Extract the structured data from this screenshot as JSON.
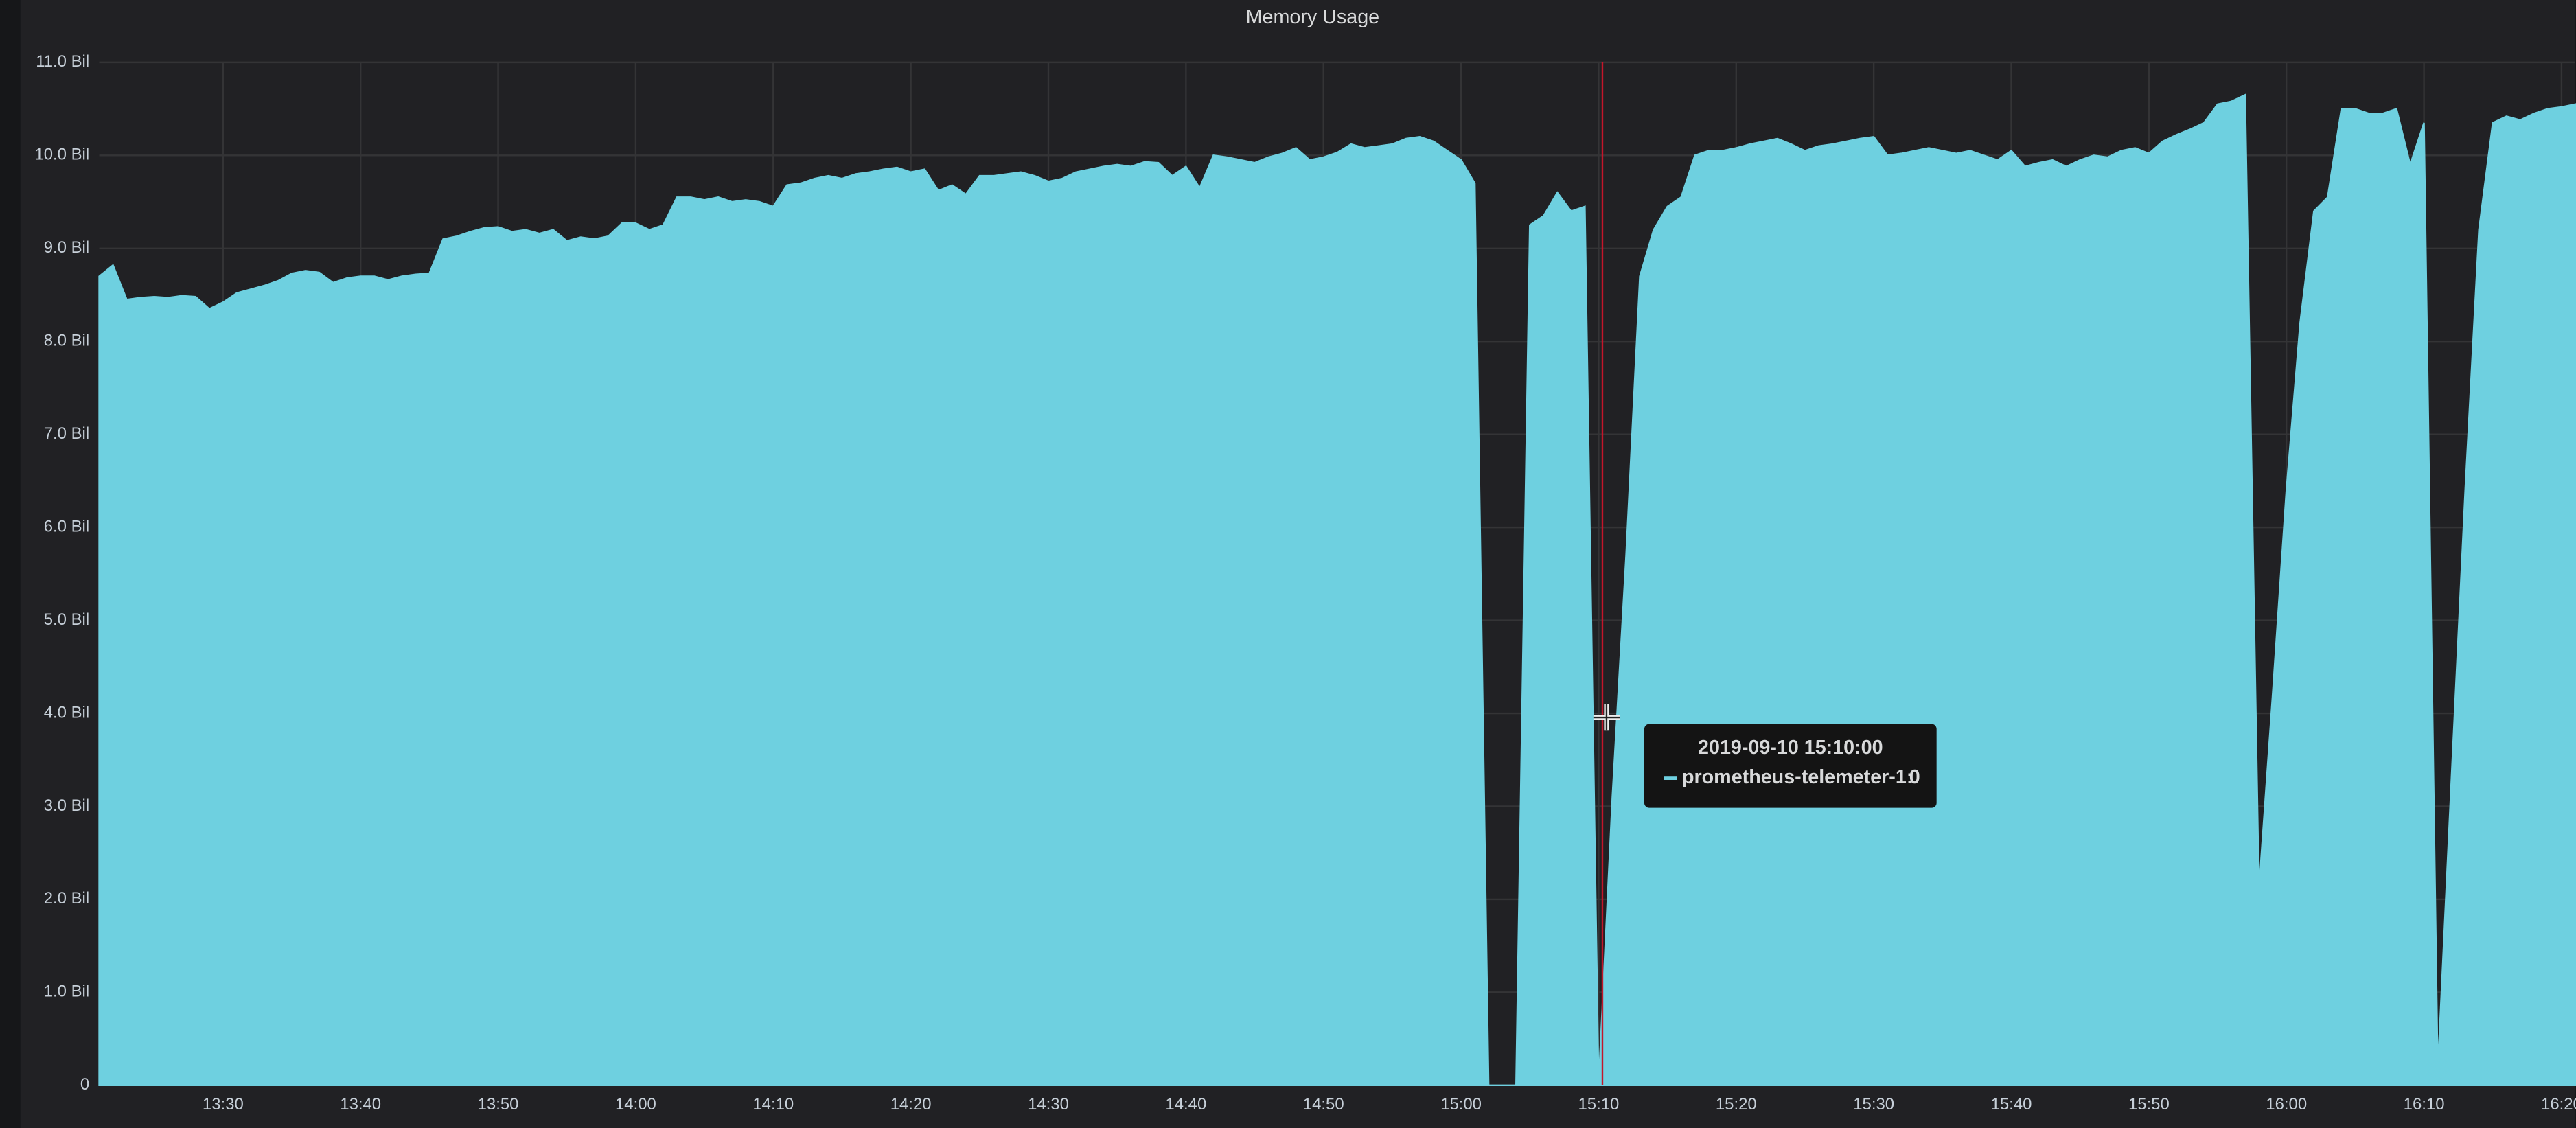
{
  "chart_data": {
    "type": "area",
    "title": "Memory Usage",
    "x": [
      "13:21",
      "13:22",
      "13:23",
      "13:24",
      "13:25",
      "13:26",
      "13:27",
      "13:28",
      "13:29",
      "13:30",
      "13:31",
      "13:32",
      "13:33",
      "13:34",
      "13:35",
      "13:36",
      "13:37",
      "13:38",
      "13:39",
      "13:40",
      "13:41",
      "13:42",
      "13:43",
      "13:44",
      "13:45",
      "13:46",
      "13:47",
      "13:48",
      "13:49",
      "13:50",
      "13:51",
      "13:52",
      "13:53",
      "13:54",
      "13:55",
      "13:56",
      "13:57",
      "13:58",
      "13:59",
      "14:00",
      "14:01",
      "14:02",
      "14:03",
      "14:04",
      "14:05",
      "14:06",
      "14:07",
      "14:08",
      "14:09",
      "14:10",
      "14:11",
      "14:12",
      "14:13",
      "14:14",
      "14:15",
      "14:16",
      "14:17",
      "14:18",
      "14:19",
      "14:20",
      "14:21",
      "14:22",
      "14:23",
      "14:24",
      "14:25",
      "14:26",
      "14:27",
      "14:28",
      "14:29",
      "14:30",
      "14:31",
      "14:32",
      "14:33",
      "14:34",
      "14:35",
      "14:36",
      "14:37",
      "14:38",
      "14:39",
      "14:40",
      "14:41",
      "14:42",
      "14:43",
      "14:44",
      "14:45",
      "14:46",
      "14:47",
      "14:48",
      "14:49",
      "14:50",
      "14:51",
      "14:52",
      "14:53",
      "14:54",
      "14:55",
      "14:56",
      "14:57",
      "14:58",
      "14:59",
      "15:00",
      "15:01",
      "15:02",
      "15:03",
      "15:04",
      "15:05",
      "15:06",
      "15:07",
      "15:08",
      "15:09",
      "15:10",
      "15:11",
      "15:12",
      "15:13",
      "15:14",
      "15:15",
      "15:16",
      "15:17",
      "15:18",
      "15:19",
      "15:20",
      "15:21",
      "15:22",
      "15:23",
      "15:24",
      "15:25",
      "15:26",
      "15:27",
      "15:28",
      "15:29",
      "15:30",
      "15:31",
      "15:32",
      "15:33",
      "15:34",
      "15:35",
      "15:36",
      "15:37",
      "15:38",
      "15:39",
      "15:40",
      "15:41",
      "15:42",
      "15:43",
      "15:44",
      "15:45",
      "15:46",
      "15:47",
      "15:48",
      "15:49",
      "15:50",
      "15:51",
      "15:52",
      "15:53",
      "15:54",
      "15:55",
      "15:56",
      "15:57",
      "15:58",
      "15:59",
      "16:00",
      "16:01",
      "16:02",
      "16:03",
      "16:04",
      "16:05",
      "16:06",
      "16:07",
      "16:08",
      "16:09",
      "16:10",
      "16:11",
      "16:12",
      "16:13",
      "16:14",
      "16:15",
      "16:16",
      "16:17",
      "16:18",
      "16:19",
      "16:20",
      "16:21"
    ],
    "series": [
      {
        "name": "prometheus-telemeter-1",
        "color": "#6ed0e0",
        "values": [
          8.7,
          8.82,
          8.45,
          8.47,
          8.48,
          8.47,
          8.49,
          8.48,
          8.35,
          8.42,
          8.52,
          8.56,
          8.6,
          8.65,
          8.73,
          8.76,
          8.74,
          8.63,
          8.68,
          8.7,
          8.7,
          8.66,
          8.7,
          8.72,
          8.73,
          9.1,
          9.13,
          9.18,
          9.22,
          9.23,
          9.18,
          9.2,
          9.16,
          9.2,
          9.08,
          9.12,
          9.1,
          9.13,
          9.27,
          9.27,
          9.2,
          9.25,
          9.55,
          9.55,
          9.52,
          9.55,
          9.5,
          9.52,
          9.5,
          9.45,
          9.68,
          9.7,
          9.75,
          9.78,
          9.75,
          9.8,
          9.82,
          9.85,
          9.87,
          9.82,
          9.85,
          9.62,
          9.68,
          9.58,
          9.78,
          9.78,
          9.8,
          9.82,
          9.78,
          9.72,
          9.75,
          9.82,
          9.85,
          9.88,
          9.9,
          9.88,
          9.93,
          9.92,
          9.78,
          9.88,
          9.65,
          10.0,
          9.98,
          9.95,
          9.92,
          9.98,
          10.02,
          10.08,
          9.95,
          9.98,
          10.03,
          10.12,
          10.08,
          10.1,
          10.12,
          10.18,
          10.2,
          10.15,
          10.05,
          9.95,
          9.7,
          0,
          0,
          0,
          9.25,
          9.35,
          9.6,
          9.4,
          9.45,
          0,
          3.1,
          5.7,
          8.7,
          9.2,
          9.45,
          9.55,
          10.0,
          10.05,
          10.05,
          10.08,
          10.12,
          10.15,
          10.18,
          10.12,
          10.05,
          10.1,
          10.12,
          10.15,
          10.18,
          10.2,
          10.0,
          10.02,
          10.05,
          10.08,
          10.05,
          10.02,
          10.05,
          10.0,
          9.95,
          10.05,
          9.88,
          9.92,
          9.95,
          9.88,
          9.95,
          10.0,
          9.98,
          10.05,
          10.08,
          10.02,
          10.15,
          10.22,
          10.28,
          10.35,
          10.55,
          10.58,
          10.65,
          2.1,
          4.2,
          6.4,
          8.2,
          9.4,
          9.55,
          10.5,
          10.5,
          10.45,
          10.45,
          10.5,
          9.9,
          10.35,
          0.15,
          3.3,
          6.4,
          9.2,
          10.35,
          10.42,
          10.38,
          10.45,
          10.5,
          10.52,
          10.55
        ]
      }
    ],
    "xlim": [
      "13:21",
      "16:21"
    ],
    "xticks": [
      "13:30",
      "13:40",
      "13:50",
      "14:00",
      "14:10",
      "14:20",
      "14:30",
      "14:40",
      "14:50",
      "15:00",
      "15:10",
      "15:20",
      "15:30",
      "15:40",
      "15:50",
      "16:00",
      "16:10",
      "16:20"
    ],
    "ylim": [
      0,
      11
    ],
    "yticks": [
      0,
      {
        "value": 1,
        "label": "1.0 Bil"
      },
      {
        "value": 2,
        "label": "2.0 Bil"
      },
      {
        "value": 3,
        "label": "3.0 Bil"
      },
      {
        "value": 4,
        "label": "4.0 Bil"
      },
      {
        "value": 5,
        "label": "5.0 Bil"
      },
      {
        "value": 6,
        "label": "6.0 Bil"
      },
      {
        "value": 7,
        "label": "7.0 Bil"
      },
      {
        "value": 8,
        "label": "8.0 Bil"
      },
      {
        "value": 9,
        "label": "9.0 Bil"
      },
      {
        "value": 10,
        "label": "10.0 Bil"
      },
      {
        "value": 11,
        "label": "11.0 Bil"
      }
    ],
    "grid": true,
    "tooltip": {
      "title": "2019-09-10 15:10:00",
      "series_label": "prometheus-telemeter-1:",
      "value": 0
    }
  }
}
